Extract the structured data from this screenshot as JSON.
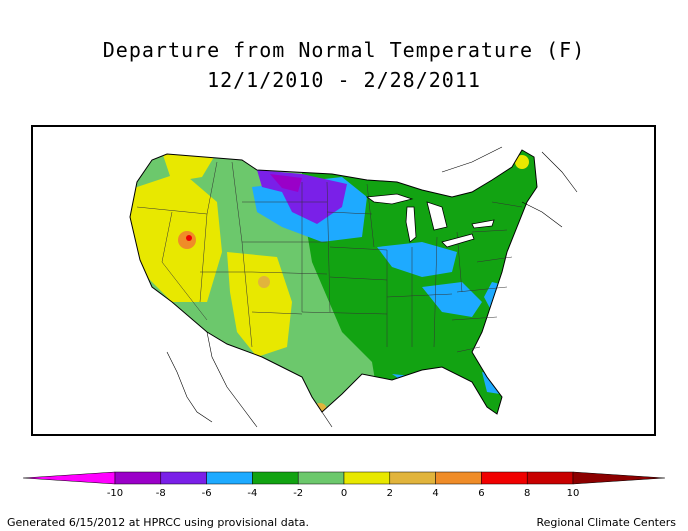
{
  "title_line1": "Departure from Normal Temperature (F)",
  "title_line2": "12/1/2010 - 2/28/2011",
  "legend": {
    "bins": [
      {
        "from": -12,
        "to": -10,
        "color": "#ff00ff"
      },
      {
        "from": -10,
        "to": -8,
        "color": "#9a00c8"
      },
      {
        "from": -8,
        "to": -6,
        "color": "#7a20e8"
      },
      {
        "from": -6,
        "to": -4,
        "color": "#1eaaff"
      },
      {
        "from": -4,
        "to": -2,
        "color": "#12a312"
      },
      {
        "from": -2,
        "to": 0,
        "color": "#6cc86c"
      },
      {
        "from": 0,
        "to": 2,
        "color": "#e8e800"
      },
      {
        "from": 2,
        "to": 4,
        "color": "#e1b43c"
      },
      {
        "from": 4,
        "to": 6,
        "color": "#ef8c28"
      },
      {
        "from": 6,
        "to": 8,
        "color": "#f00000"
      },
      {
        "from": 8,
        "to": 10,
        "color": "#c80000"
      },
      {
        "from": 10,
        "to": 12,
        "color": "#8c0000"
      }
    ],
    "ticks": [
      "-10",
      "-8",
      "-6",
      "-4",
      "-2",
      "0",
      "2",
      "4",
      "6",
      "8",
      "10"
    ]
  },
  "footer_left": "Generated 6/15/2012 at HPRCC using provisional data.",
  "footer_right": "Regional Climate Centers"
}
